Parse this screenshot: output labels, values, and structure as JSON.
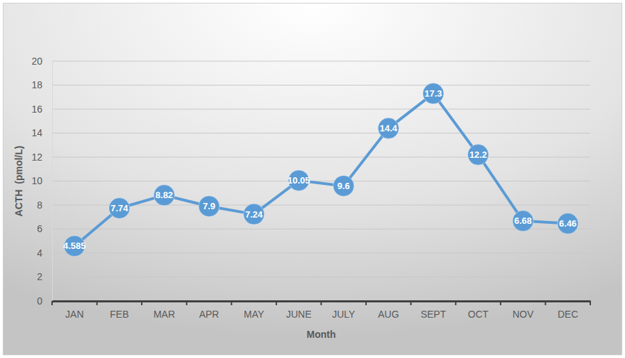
{
  "chart_data": {
    "type": "line",
    "x_label": "Month",
    "y_label": "ACTH  (pmol/L)",
    "categories": [
      "JAN",
      "FEB",
      "MAR",
      "APR",
      "MAY",
      "JUNE",
      "JULY",
      "AUG",
      "SEPT",
      "OCT",
      "NOV",
      "DEC"
    ],
    "values": [
      4.585,
      7.74,
      8.82,
      7.9,
      7.24,
      10.05,
      9.6,
      14.4,
      17.3,
      12.2,
      6.68,
      6.46
    ],
    "color": "#5b9bd5",
    "marker": "circle",
    "ylim": [
      0,
      20
    ],
    "yticks": [
      0,
      2,
      4,
      6,
      8,
      10,
      12,
      14,
      16,
      18,
      20
    ],
    "grid": true,
    "data_labels": true
  }
}
